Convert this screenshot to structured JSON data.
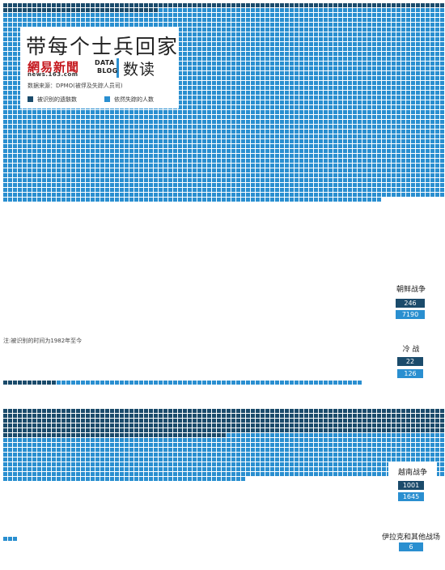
{
  "title": "带每个士兵回家",
  "brand": {
    "logo_cn": "網易新聞",
    "logo_en": "news.163.com",
    "datablog_line1": "DATA",
    "datablog_line2": "BLOG",
    "shudu": "数读"
  },
  "source": "数据来源：DPMO(被俘及失踪人员司)",
  "note": "注:被识别的时间为1982年至今",
  "colors": {
    "identified": "#1b4b6b",
    "missing": "#2a8fd0"
  },
  "chart_data": {
    "type": "waffle",
    "legend": [
      {
        "key": "identified",
        "label": "被识别的遗骸数"
      },
      {
        "key": "missing",
        "label": "依然失踪的人数"
      }
    ],
    "categories": [
      "朝鲜战争",
      "冷 战",
      "越南战争",
      "伊拉克和其他战场"
    ],
    "series": [
      {
        "name": "被识别的遗骸数",
        "values": [
          246,
          22,
          1001,
          null
        ]
      },
      {
        "name": "依然失踪的人数",
        "values": [
          7190,
          126,
          1645,
          6
        ]
      }
    ]
  }
}
